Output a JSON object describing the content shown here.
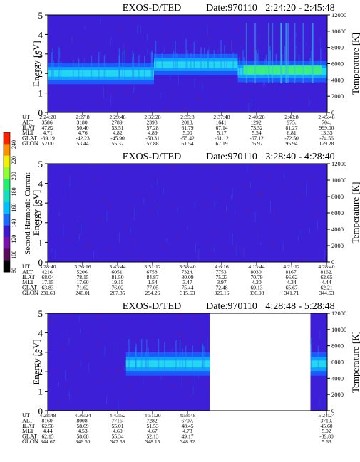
{
  "colors": {
    "background": "#3c1fd6",
    "band_cyan": "#27d9f0",
    "band_green": "#3cf07a",
    "speckle": "#9e1a2a",
    "gap": "#ffffff"
  },
  "colorbar": {
    "label": "Second Harmonic Current",
    "ticks": [
      "80",
      "100",
      "120",
      "140",
      "160",
      "180",
      "200",
      "220",
      "240"
    ],
    "colors": [
      "#000000",
      "#5a0a5a",
      "#7a10b0",
      "#3a1ad0",
      "#1a6aff",
      "#00c0ff",
      "#10e0c0",
      "#20f070",
      "#90ff30",
      "#f0f000",
      "#ff9000",
      "#ff2000"
    ]
  },
  "chart_data": [
    {
      "type": "heatmap",
      "title": "EXOS-D/TED",
      "date_label": "Date:970110",
      "time_range": "2:24:20 - 2:45:48",
      "ylabel": "Energy [eV]",
      "y2label": "Temperature [K]",
      "ylim": [
        0,
        5
      ],
      "y2lim": [
        0,
        12000
      ],
      "yticks": [
        "0",
        "1",
        "2",
        "3",
        "4",
        "5"
      ],
      "y2ticks": [
        "0",
        "2000",
        "4000",
        "6000",
        "8000",
        "10000",
        "12000"
      ],
      "band": {
        "segments": [
          [
            0,
            0.38,
            2.0
          ],
          [
            0.38,
            0.56,
            2.45
          ],
          [
            0.56,
            0.68,
            2.45
          ],
          [
            0.68,
            1.0,
            2.1
          ]
        ],
        "half_width": 0.55
      },
      "gaps": [],
      "bright": [
        0.7,
        0.98
      ],
      "rows": [
        "UT",
        "ALT",
        "ILAT",
        "MLT",
        "GLAT",
        "GLON"
      ],
      "columns": [
        [
          "2:24:20",
          "3586.",
          "47.82",
          "4.71",
          "-39.19",
          "52.00"
        ],
        [
          "2:27:8",
          "3180.",
          "50.40",
          "4.76",
          "-42.23",
          "53.44"
        ],
        [
          "2:29:48",
          "2789.",
          "53.51",
          "4.82",
          "-45.90",
          "55.32"
        ],
        [
          "2:32:28",
          "2398.",
          "57.28",
          "4.89",
          "-50.31",
          "57.88"
        ],
        [
          "2:35:8",
          "2013.",
          "61.79",
          "5.00",
          "-55.42",
          "61.54"
        ],
        [
          "2:37:48",
          "1641.",
          "67.14",
          "5.17",
          "-61.12",
          "67.19"
        ],
        [
          "2:40:28",
          "1292.",
          "73.52",
          "5.54",
          "-67.12",
          "76.97"
        ],
        [
          "2:43:8",
          "975.",
          "81.27",
          "6.81",
          "-72.50",
          "95.94"
        ],
        [
          "2:45:48",
          "704.",
          "999.00",
          "13.33",
          "-74.56",
          "129.28"
        ]
      ]
    },
    {
      "type": "heatmap",
      "title": "EXOS-D/TED",
      "date_label": "Date:970110",
      "time_range": "3:28:40 - 4:28:40",
      "ylabel": "Energy [eV]",
      "y2label": "Temperature [K]",
      "ylim": [
        0,
        5
      ],
      "y2lim": [
        0,
        12000
      ],
      "yticks": [
        "0",
        "1",
        "2",
        "3",
        "4",
        "5"
      ],
      "y2ticks": [
        "0",
        "2000",
        "4000",
        "6000",
        "8000",
        "10000",
        "12000"
      ],
      "band": null,
      "gaps": [],
      "bright": null,
      "rows": [
        "UT",
        "ALT",
        "ILAT",
        "MLT",
        "GLAT",
        "GLON"
      ],
      "columns": [
        [
          "3:28:40",
          "4216.",
          "68.04",
          "17.15",
          "63.83",
          "231.63"
        ],
        [
          "3:36:16",
          "5206.",
          "78.15",
          "17.60",
          "71.62",
          "246.01"
        ],
        [
          "3:43:44",
          "6051.",
          "81.50",
          "19.15",
          "76.02",
          "267.85"
        ],
        [
          "3:51:12",
          "6758.",
          "84.87",
          "1.54",
          "77.05",
          "294.26"
        ],
        [
          "3:58:40",
          "7324.",
          "80.09",
          "3.47",
          "75.44",
          "315.63"
        ],
        [
          "4:6:16",
          "7753.",
          "75.23",
          "3.97",
          "72.48",
          "329.16"
        ],
        [
          "4:13:44",
          "8030.",
          "70.79",
          "4.20",
          "69.13",
          "336.98"
        ],
        [
          "4:21:12",
          "8167.",
          "66.62",
          "4.34",
          "65.67",
          "341.71"
        ],
        [
          "4:28:40",
          "8162.",
          "62.65",
          "4.44",
          "62.21",
          "344.63"
        ]
      ]
    },
    {
      "type": "heatmap",
      "title": "EXOS-D/TED",
      "date_label": "Date:970110",
      "time_range": "4:28:48 - 5:28:48",
      "ylabel": "Energy [eV]",
      "y2label": "Temperature [K]",
      "ylim": [
        0,
        5
      ],
      "y2lim": [
        0,
        12000
      ],
      "yticks": [
        "0",
        "1",
        "2",
        "3",
        "4",
        "5"
      ],
      "y2ticks": [
        "0",
        "2000",
        "4000",
        "6000",
        "8000",
        "10000",
        "12000"
      ],
      "band": {
        "segments": [
          [
            0.28,
            0.58,
            2.4
          ],
          [
            0.94,
            1.0,
            2.4
          ]
        ],
        "half_width": 0.6
      },
      "gaps": [
        [
          0.58,
          0.94
        ]
      ],
      "bright": null,
      "rows": [
        "UT",
        "ALT",
        "ILAT",
        "MLT",
        "GLAT",
        "GLON"
      ],
      "columns": [
        [
          "4:28:48",
          "8160.",
          "62.58",
          "4.44",
          "62.15",
          "344.67"
        ],
        [
          "4:36:24",
          "8008.",
          "58.69",
          "4.53",
          "58.68",
          "346.50"
        ],
        [
          "4:43:52",
          "7716.",
          "55.01",
          "4.60",
          "55.34",
          "347.58"
        ],
        [
          "4:51:20",
          "7282.",
          "51.53",
          "4.67",
          "52.13",
          "348.15"
        ],
        [
          "4:58:48",
          "6707.",
          "48.45",
          "4.73",
          "49.17",
          "348.32"
        ],
        null,
        null,
        null,
        [
          "5:24:24",
          "3719.",
          "45.60",
          "5.02",
          "-39.80",
          "5.63"
        ]
      ]
    }
  ]
}
